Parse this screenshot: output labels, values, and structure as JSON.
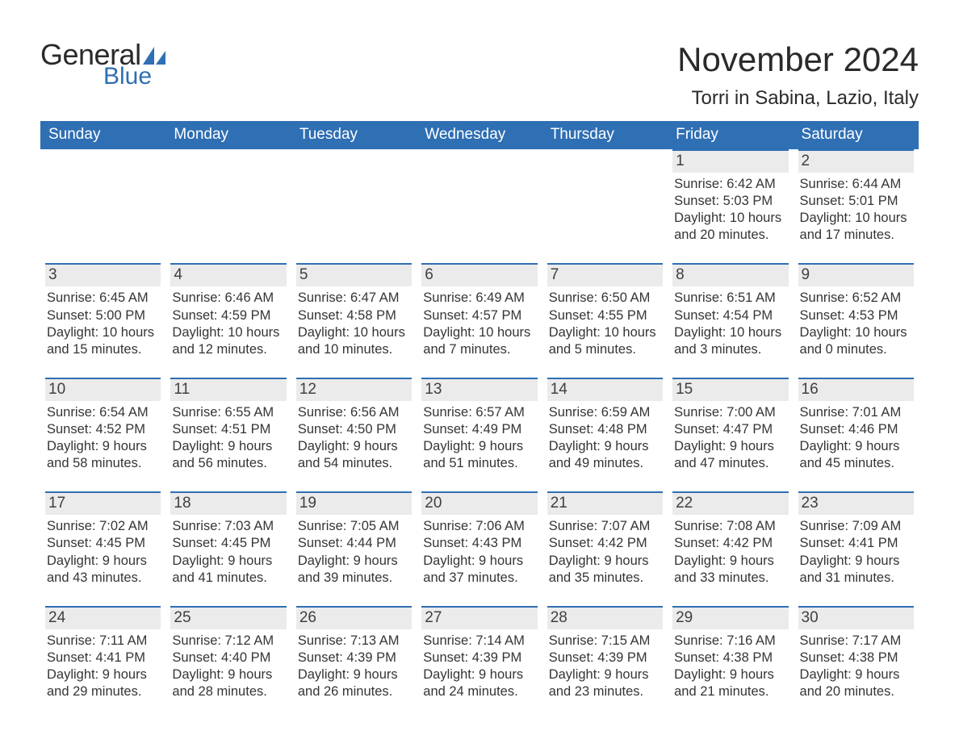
{
  "brand": {
    "word1": "General",
    "word2": "Blue",
    "sail_color": "#2f6fb3",
    "text_color": "#2a2a2a"
  },
  "title": "November 2024",
  "location": "Torri in Sabina, Lazio, Italy",
  "colors": {
    "header_bg": "#2f6fb3",
    "header_text": "#ffffff",
    "date_bar_bg": "#ebebeb",
    "date_bar_border": "#2f6fb3",
    "body_text": "#353535",
    "page_bg": "#ffffff"
  },
  "typography": {
    "title_fontsize": 42,
    "location_fontsize": 24,
    "dow_fontsize": 19,
    "date_fontsize": 19,
    "body_fontsize": 16.5,
    "font_family": "Arial"
  },
  "days_of_week": [
    "Sunday",
    "Monday",
    "Tuesday",
    "Wednesday",
    "Thursday",
    "Friday",
    "Saturday"
  ],
  "weeks": [
    [
      {
        "empty": true
      },
      {
        "empty": true
      },
      {
        "empty": true
      },
      {
        "empty": true
      },
      {
        "empty": true
      },
      {
        "date": "1",
        "sunrise": "Sunrise: 6:42 AM",
        "sunset": "Sunset: 5:03 PM",
        "daylight1": "Daylight: 10 hours",
        "daylight2": "and 20 minutes."
      },
      {
        "date": "2",
        "sunrise": "Sunrise: 6:44 AM",
        "sunset": "Sunset: 5:01 PM",
        "daylight1": "Daylight: 10 hours",
        "daylight2": "and 17 minutes."
      }
    ],
    [
      {
        "date": "3",
        "sunrise": "Sunrise: 6:45 AM",
        "sunset": "Sunset: 5:00 PM",
        "daylight1": "Daylight: 10 hours",
        "daylight2": "and 15 minutes."
      },
      {
        "date": "4",
        "sunrise": "Sunrise: 6:46 AM",
        "sunset": "Sunset: 4:59 PM",
        "daylight1": "Daylight: 10 hours",
        "daylight2": "and 12 minutes."
      },
      {
        "date": "5",
        "sunrise": "Sunrise: 6:47 AM",
        "sunset": "Sunset: 4:58 PM",
        "daylight1": "Daylight: 10 hours",
        "daylight2": "and 10 minutes."
      },
      {
        "date": "6",
        "sunrise": "Sunrise: 6:49 AM",
        "sunset": "Sunset: 4:57 PM",
        "daylight1": "Daylight: 10 hours",
        "daylight2": "and 7 minutes."
      },
      {
        "date": "7",
        "sunrise": "Sunrise: 6:50 AM",
        "sunset": "Sunset: 4:55 PM",
        "daylight1": "Daylight: 10 hours",
        "daylight2": "and 5 minutes."
      },
      {
        "date": "8",
        "sunrise": "Sunrise: 6:51 AM",
        "sunset": "Sunset: 4:54 PM",
        "daylight1": "Daylight: 10 hours",
        "daylight2": "and 3 minutes."
      },
      {
        "date": "9",
        "sunrise": "Sunrise: 6:52 AM",
        "sunset": "Sunset: 4:53 PM",
        "daylight1": "Daylight: 10 hours",
        "daylight2": "and 0 minutes."
      }
    ],
    [
      {
        "date": "10",
        "sunrise": "Sunrise: 6:54 AM",
        "sunset": "Sunset: 4:52 PM",
        "daylight1": "Daylight: 9 hours",
        "daylight2": "and 58 minutes."
      },
      {
        "date": "11",
        "sunrise": "Sunrise: 6:55 AM",
        "sunset": "Sunset: 4:51 PM",
        "daylight1": "Daylight: 9 hours",
        "daylight2": "and 56 minutes."
      },
      {
        "date": "12",
        "sunrise": "Sunrise: 6:56 AM",
        "sunset": "Sunset: 4:50 PM",
        "daylight1": "Daylight: 9 hours",
        "daylight2": "and 54 minutes."
      },
      {
        "date": "13",
        "sunrise": "Sunrise: 6:57 AM",
        "sunset": "Sunset: 4:49 PM",
        "daylight1": "Daylight: 9 hours",
        "daylight2": "and 51 minutes."
      },
      {
        "date": "14",
        "sunrise": "Sunrise: 6:59 AM",
        "sunset": "Sunset: 4:48 PM",
        "daylight1": "Daylight: 9 hours",
        "daylight2": "and 49 minutes."
      },
      {
        "date": "15",
        "sunrise": "Sunrise: 7:00 AM",
        "sunset": "Sunset: 4:47 PM",
        "daylight1": "Daylight: 9 hours",
        "daylight2": "and 47 minutes."
      },
      {
        "date": "16",
        "sunrise": "Sunrise: 7:01 AM",
        "sunset": "Sunset: 4:46 PM",
        "daylight1": "Daylight: 9 hours",
        "daylight2": "and 45 minutes."
      }
    ],
    [
      {
        "date": "17",
        "sunrise": "Sunrise: 7:02 AM",
        "sunset": "Sunset: 4:45 PM",
        "daylight1": "Daylight: 9 hours",
        "daylight2": "and 43 minutes."
      },
      {
        "date": "18",
        "sunrise": "Sunrise: 7:03 AM",
        "sunset": "Sunset: 4:45 PM",
        "daylight1": "Daylight: 9 hours",
        "daylight2": "and 41 minutes."
      },
      {
        "date": "19",
        "sunrise": "Sunrise: 7:05 AM",
        "sunset": "Sunset: 4:44 PM",
        "daylight1": "Daylight: 9 hours",
        "daylight2": "and 39 minutes."
      },
      {
        "date": "20",
        "sunrise": "Sunrise: 7:06 AM",
        "sunset": "Sunset: 4:43 PM",
        "daylight1": "Daylight: 9 hours",
        "daylight2": "and 37 minutes."
      },
      {
        "date": "21",
        "sunrise": "Sunrise: 7:07 AM",
        "sunset": "Sunset: 4:42 PM",
        "daylight1": "Daylight: 9 hours",
        "daylight2": "and 35 minutes."
      },
      {
        "date": "22",
        "sunrise": "Sunrise: 7:08 AM",
        "sunset": "Sunset: 4:42 PM",
        "daylight1": "Daylight: 9 hours",
        "daylight2": "and 33 minutes."
      },
      {
        "date": "23",
        "sunrise": "Sunrise: 7:09 AM",
        "sunset": "Sunset: 4:41 PM",
        "daylight1": "Daylight: 9 hours",
        "daylight2": "and 31 minutes."
      }
    ],
    [
      {
        "date": "24",
        "sunrise": "Sunrise: 7:11 AM",
        "sunset": "Sunset: 4:41 PM",
        "daylight1": "Daylight: 9 hours",
        "daylight2": "and 29 minutes."
      },
      {
        "date": "25",
        "sunrise": "Sunrise: 7:12 AM",
        "sunset": "Sunset: 4:40 PM",
        "daylight1": "Daylight: 9 hours",
        "daylight2": "and 28 minutes."
      },
      {
        "date": "26",
        "sunrise": "Sunrise: 7:13 AM",
        "sunset": "Sunset: 4:39 PM",
        "daylight1": "Daylight: 9 hours",
        "daylight2": "and 26 minutes."
      },
      {
        "date": "27",
        "sunrise": "Sunrise: 7:14 AM",
        "sunset": "Sunset: 4:39 PM",
        "daylight1": "Daylight: 9 hours",
        "daylight2": "and 24 minutes."
      },
      {
        "date": "28",
        "sunrise": "Sunrise: 7:15 AM",
        "sunset": "Sunset: 4:39 PM",
        "daylight1": "Daylight: 9 hours",
        "daylight2": "and 23 minutes."
      },
      {
        "date": "29",
        "sunrise": "Sunrise: 7:16 AM",
        "sunset": "Sunset: 4:38 PM",
        "daylight1": "Daylight: 9 hours",
        "daylight2": "and 21 minutes."
      },
      {
        "date": "30",
        "sunrise": "Sunrise: 7:17 AM",
        "sunset": "Sunset: 4:38 PM",
        "daylight1": "Daylight: 9 hours",
        "daylight2": "and 20 minutes."
      }
    ]
  ]
}
